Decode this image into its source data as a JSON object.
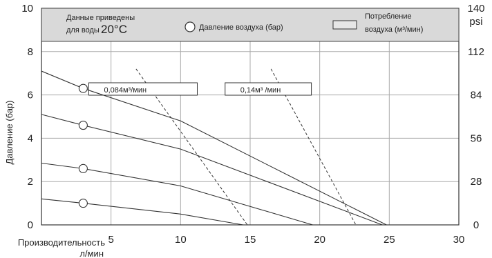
{
  "chart_data": {
    "type": "line",
    "xlabel": "Производительность л/мин",
    "xlabel_lines": [
      "Производительность",
      "л/мин"
    ],
    "ylabel": "Давление (бар)",
    "y2label": "psi",
    "xlim": [
      0,
      30
    ],
    "ylim": [
      0,
      10
    ],
    "x_ticks": [
      5,
      10,
      15,
      20,
      25,
      30
    ],
    "y_ticks": [
      0,
      2,
      4,
      6,
      8,
      10
    ],
    "y2_ticks": [
      "0",
      "28",
      "56",
      "84",
      "112",
      "140"
    ],
    "grid": true,
    "legend": {
      "note_line1": "Данные приведены",
      "note_line2": "для воды",
      "note_temp": "20°C",
      "pressure_label": "Давление воздуха (бар)",
      "consumption_label_line1": "Потребление",
      "consumption_label_line2": "воздуха (м³/мин)"
    },
    "series": [
      {
        "pressure": 6.3,
        "x": [
          0,
          3,
          10,
          24.8
        ],
        "y": [
          7.1,
          6.3,
          4.8,
          0
        ]
      },
      {
        "pressure": 4.6,
        "x": [
          0,
          3,
          10,
          24.5
        ],
        "y": [
          5.1,
          4.6,
          3.5,
          0
        ]
      },
      {
        "pressure": 2.6,
        "x": [
          0,
          3,
          10,
          19.5
        ],
        "y": [
          2.85,
          2.6,
          1.8,
          0
        ]
      },
      {
        "pressure": 1.0,
        "x": [
          0,
          3,
          10,
          14.5
        ],
        "y": [
          1.2,
          1.0,
          0.5,
          0
        ]
      }
    ],
    "consumption_lines": [
      {
        "label": "0,084м³/мин",
        "x": [
          6.8,
          14.8
        ],
        "y": [
          7.2,
          0
        ]
      },
      {
        "label": "0,14м³ /мин",
        "x": [
          16.5,
          22.6
        ],
        "y": [
          7.2,
          0
        ]
      }
    ]
  }
}
